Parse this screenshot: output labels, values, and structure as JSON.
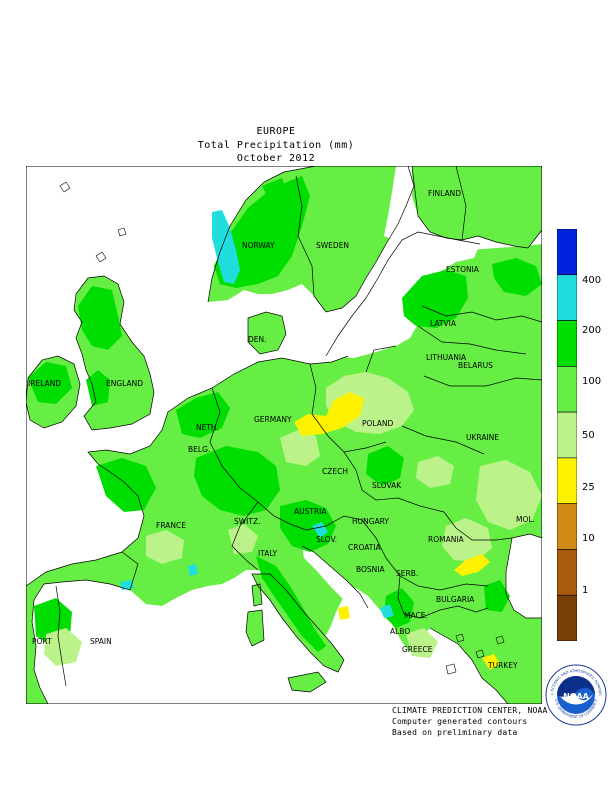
{
  "title": {
    "region": "EUROPE",
    "variable": "Total Precipitation (mm)",
    "period": "October 2012"
  },
  "legend": {
    "colors": [
      "#0022dd",
      "#22dddd",
      "#00dd00",
      "#66ee44",
      "#bbf38a",
      "#fff200",
      "#d08a16",
      "#aa5c0c",
      "#7a3f06"
    ],
    "ticks": [
      "400",
      "200",
      "100",
      "50",
      "25",
      "10",
      "1"
    ]
  },
  "labels": {
    "finland": "FINLAND",
    "norway": "NORWAY",
    "sweden": "SWEDEN",
    "estonia": "ESTONIA",
    "latvia": "LATVIA",
    "lithuania": "LITHUANIA",
    "den": "DEN.",
    "belarus": "BELARUS",
    "ireland": "IRELAND",
    "england": "ENGLAND",
    "neth": "NETH.",
    "germany": "GERMANY",
    "poland": "POLAND",
    "belg": "BELG.",
    "czech": "CZECH",
    "ukraine": "UKRAINE",
    "slovak": "SLOVAK",
    "mol": "MOL.",
    "france": "FRANCE",
    "switz": "SWITZ.",
    "austria": "AUSTRIA",
    "hungary": "HUNGARY",
    "slov": "SLOV.",
    "croatia": "CROATIA",
    "romania": "ROMANIA",
    "italy": "ITALY",
    "bosnia": "BOSNIA",
    "serb": "SERB.",
    "bulgaria": "BULGARIA",
    "port": "PORT",
    "spain": "SPAIN",
    "mace": "MACE.",
    "albo": "ALBO",
    "greece": "GREECE",
    "turkey": "TURKEY"
  },
  "footer": {
    "line1": "CLIMATE PREDICTION CENTER, NOAA",
    "line2": "Computer generated contours",
    "line3": "Based on preliminary data"
  },
  "logo": {
    "text": "NOAA",
    "ring_top": "NATIONAL OCEANIC AND ATMOSPHERIC ADMINISTRATION",
    "ring_bottom": "U.S. DEPARTMENT OF COMMERCE"
  }
}
